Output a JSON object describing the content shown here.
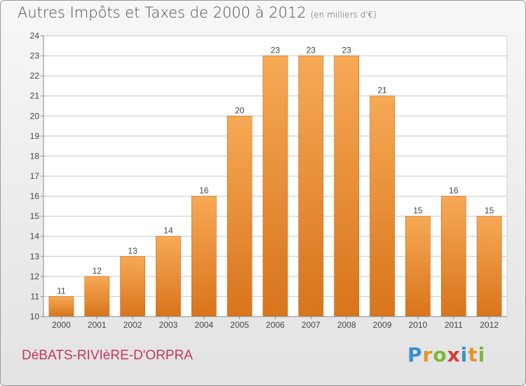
{
  "header": {
    "title": "Autres Impôts et Taxes de 2000 à 2012",
    "subtitle": "(en milliers d'€)"
  },
  "footer": {
    "place": "DéBATS-RIVIèRE-D'ORPRA",
    "brand": "Proxiti",
    "brand_letters": [
      {
        "char": "P",
        "color": "#3a8fd0"
      },
      {
        "char": "r",
        "color": "#e8912a"
      },
      {
        "char": "o",
        "color": "#7ab83b"
      },
      {
        "char": "x",
        "color": "#d63a3a"
      },
      {
        "char": "i",
        "color": "#3a8fd0"
      },
      {
        "char": "t",
        "color": "#e8912a"
      },
      {
        "char": "i",
        "color": "#7ab83b"
      }
    ]
  },
  "colors": {
    "bar_top": "#f7a955",
    "bar_bottom": "#d8741c",
    "grid": "#c8c8c8",
    "plot_background": "#ffffff",
    "text": "#444444"
  },
  "chart_data": {
    "type": "bar",
    "title": "Autres Impôts et Taxes de 2000 à 2012",
    "subtitle": "(en milliers d'€)",
    "xlabel": "",
    "ylabel": "",
    "categories": [
      "2000",
      "2001",
      "2002",
      "2003",
      "2004",
      "2005",
      "2006",
      "2007",
      "2008",
      "2009",
      "2010",
      "2011",
      "2012"
    ],
    "values": [
      11,
      12,
      13,
      14,
      16,
      20,
      23,
      23,
      23,
      21,
      15,
      16,
      15
    ],
    "value_labels": [
      "11",
      "12",
      "13",
      "14",
      "16",
      "20",
      "23",
      "23",
      "23",
      "21",
      "15",
      "16",
      "15"
    ],
    "ylim": [
      10,
      24
    ],
    "yticks": [
      10,
      11,
      12,
      13,
      14,
      15,
      16,
      17,
      18,
      19,
      20,
      21,
      22,
      23,
      24
    ],
    "grid": true,
    "legend": "none"
  }
}
